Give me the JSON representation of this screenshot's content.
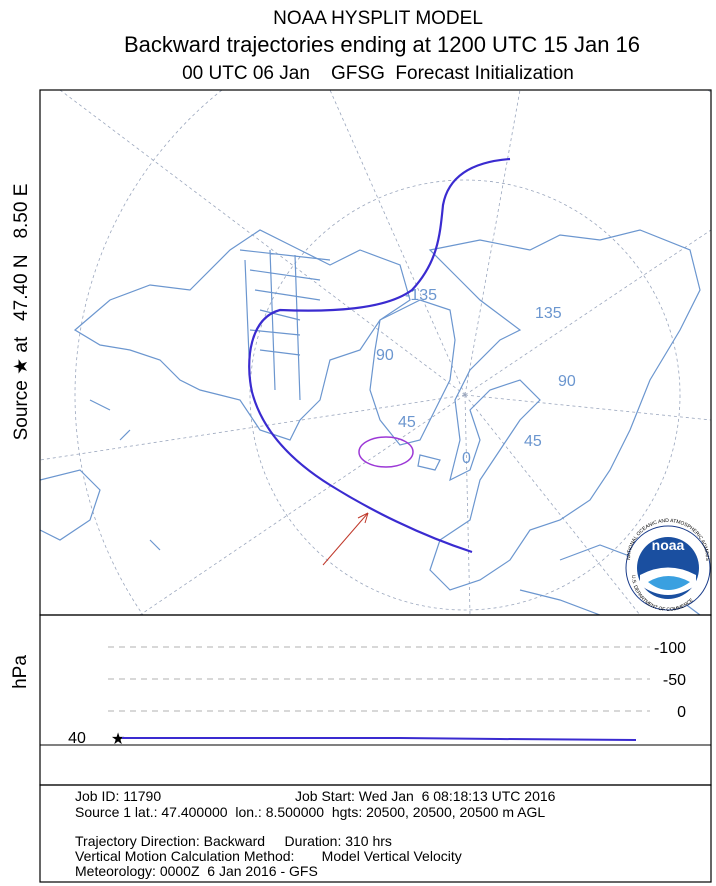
{
  "header": {
    "title": "NOAA HYSPLIT MODEL",
    "subtitle": "Backward trajectories ending at 1200 UTC 15 Jan 16",
    "init": "00 UTC 06 Jan    GFSG  Forecast Initialization"
  },
  "side_label": "Source ★ at   47.40 N   8.50 E",
  "map": {
    "grid_labels": [
      "-135",
      "135",
      "90",
      "90",
      "45",
      "45",
      "0"
    ],
    "logo": {
      "name": "noaa",
      "ring_top": "NATIONAL OCEANIC AND ATMOSPHERIC ADMINISTRATION",
      "ring_bottom": "U.S. DEPARTMENT OF COMMERCE"
    }
  },
  "vertical": {
    "axis_label": "hPa",
    "ticks": [
      -100,
      -50,
      0
    ],
    "start_label": "40"
  },
  "info": [
    "Job ID: 11790",
    "Job Start: Wed Jan  6 08:18:13 UTC 2016",
    "Source 1 lat.: 47.400000  lon.: 8.500000  hgts: 20500, 20500, 20500 m AGL",
    "Trajectory Direction: Backward     Duration: 310 hrs",
    "Vertical Motion Calculation Method:       Model Vertical Velocity",
    "Meteorology: 0000Z  6 Jan 2016 - GFS"
  ]
}
